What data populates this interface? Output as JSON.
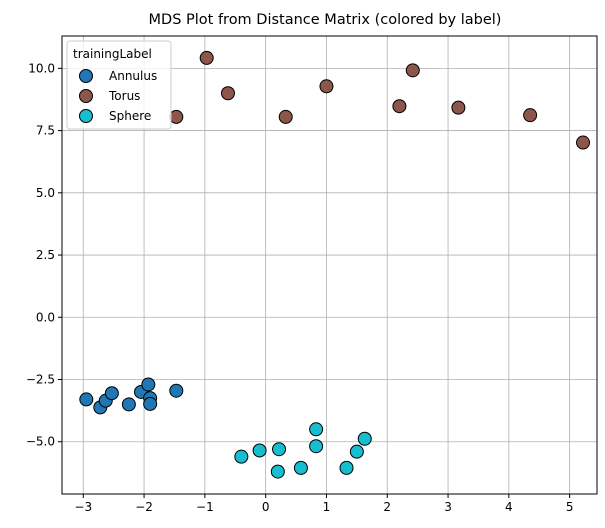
{
  "chart_data": {
    "type": "scatter",
    "title": "MDS Plot from Distance Matrix (colored by label)",
    "xlabel": "",
    "ylabel": "",
    "xlim": [
      -3.35,
      5.45
    ],
    "ylim": [
      -7.1,
      11.3
    ],
    "xticks": [
      -3,
      -2,
      -1,
      0,
      1,
      2,
      3,
      4,
      5
    ],
    "yticks": [
      -5.0,
      -2.5,
      0.0,
      2.5,
      5.0,
      7.5,
      10.0
    ],
    "grid": true,
    "legend": {
      "title": "trainingLabel",
      "position": "top-left"
    },
    "series": [
      {
        "name": "Annulus",
        "color": "#1f77b4",
        "points": [
          [
            -2.95,
            -3.3
          ],
          [
            -2.72,
            -3.62
          ],
          [
            -2.63,
            -3.35
          ],
          [
            -2.53,
            -3.05
          ],
          [
            -2.25,
            -3.5
          ],
          [
            -2.05,
            -3.0
          ],
          [
            -1.93,
            -2.7
          ],
          [
            -1.9,
            -3.25
          ],
          [
            -1.9,
            -3.48
          ],
          [
            -1.47,
            -2.95
          ]
        ]
      },
      {
        "name": "Torus",
        "color": "#8c564b",
        "points": [
          [
            -1.47,
            8.05
          ],
          [
            -0.97,
            10.42
          ],
          [
            -0.62,
            9.0
          ],
          [
            0.33,
            8.05
          ],
          [
            1.0,
            9.28
          ],
          [
            2.2,
            8.48
          ],
          [
            2.42,
            9.92
          ],
          [
            3.17,
            8.42
          ],
          [
            4.35,
            8.12
          ],
          [
            5.22,
            7.02
          ]
        ]
      },
      {
        "name": "Sphere",
        "color": "#17becf",
        "points": [
          [
            -0.4,
            -5.6
          ],
          [
            -0.1,
            -5.35
          ],
          [
            0.2,
            -6.2
          ],
          [
            0.22,
            -5.3
          ],
          [
            0.58,
            -6.05
          ],
          [
            0.83,
            -4.5
          ],
          [
            0.83,
            -5.18
          ],
          [
            1.33,
            -6.05
          ],
          [
            1.5,
            -5.4
          ],
          [
            1.63,
            -4.88
          ]
        ]
      }
    ]
  }
}
